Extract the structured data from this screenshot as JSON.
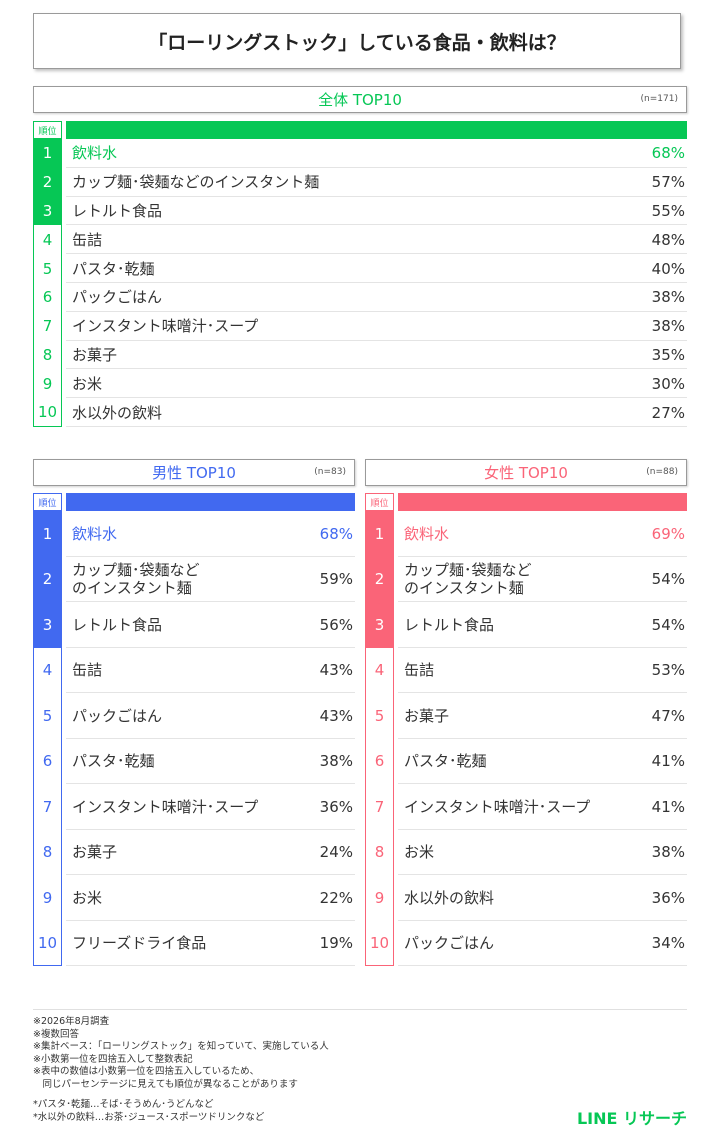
{
  "title": "「ローリングストック」している食品・飲料は？",
  "rank_header": "順位",
  "colors": {
    "overall": "#06c755",
    "male": "#4169f0",
    "female": "#fa6478"
  },
  "chart_data": [
    {
      "type": "table",
      "title": "全体 TOP10",
      "n": "(n=171)",
      "ranks": [
        "1",
        "2",
        "3",
        "4",
        "5",
        "6",
        "7",
        "8",
        "9",
        "10"
      ],
      "categories": [
        "飲料水",
        "カップ麺･袋麺などのインスタント麺",
        "レトルト食品",
        "缶詰",
        "パスタ･乾麺",
        "パックごはん",
        "インスタント味噌汁･スープ",
        "お菓子",
        "お米",
        "水以外の飲料"
      ],
      "values": [
        "68%",
        "57%",
        "55%",
        "48%",
        "40%",
        "38%",
        "38%",
        "35%",
        "30%",
        "27%"
      ]
    },
    {
      "type": "table",
      "title": "男性 TOP10",
      "n": "(n=83)",
      "ranks": [
        "1",
        "2",
        "3",
        "4",
        "5",
        "6",
        "7",
        "8",
        "9",
        "10"
      ],
      "categories": [
        [
          "飲料水"
        ],
        [
          "カップ麺･袋麺など",
          "のインスタント麺"
        ],
        [
          "レトルト食品"
        ],
        [
          "缶詰"
        ],
        [
          "パックごはん"
        ],
        [
          "パスタ･乾麺"
        ],
        [
          "インスタント味噌汁･スープ"
        ],
        [
          "お菓子"
        ],
        [
          "お米"
        ],
        [
          "フリーズドライ食品"
        ]
      ],
      "values": [
        "68%",
        "59%",
        "56%",
        "43%",
        "43%",
        "38%",
        "36%",
        "24%",
        "22%",
        "19%"
      ]
    },
    {
      "type": "table",
      "title": "女性 TOP10",
      "n": "(n=88)",
      "ranks": [
        "1",
        "2",
        "3",
        "4",
        "5",
        "6",
        "7",
        "8",
        "9",
        "10"
      ],
      "categories": [
        [
          "飲料水"
        ],
        [
          "カップ麺･袋麺など",
          "のインスタント麺"
        ],
        [
          "レトルト食品"
        ],
        [
          "缶詰"
        ],
        [
          "お菓子"
        ],
        [
          "パスタ･乾麺"
        ],
        [
          "インスタント味噌汁･スープ"
        ],
        [
          "お米"
        ],
        [
          "水以外の飲料"
        ],
        [
          "パックごはん"
        ]
      ],
      "values": [
        "69%",
        "54%",
        "54%",
        "53%",
        "47%",
        "41%",
        "41%",
        "38%",
        "36%",
        "34%"
      ]
    }
  ],
  "notes": [
    "※2026年8月調査",
    "※複数回答",
    "※集計ベース：「ローリングストック」を知っていて、実施している人",
    "※小数第一位を四捨五入して整数表記",
    "※表中の数値は小数第一位を四捨五入しているため、",
    "　同じパーセンテージに見えても順位が異なることがあります"
  ],
  "footnotes": [
    "*パスタ･乾麺…そば･そうめん･うどんなど",
    "*水以外の飲料…お茶･ジュース･スポーツドリンクなど"
  ],
  "logo": "LINE リサーチ"
}
